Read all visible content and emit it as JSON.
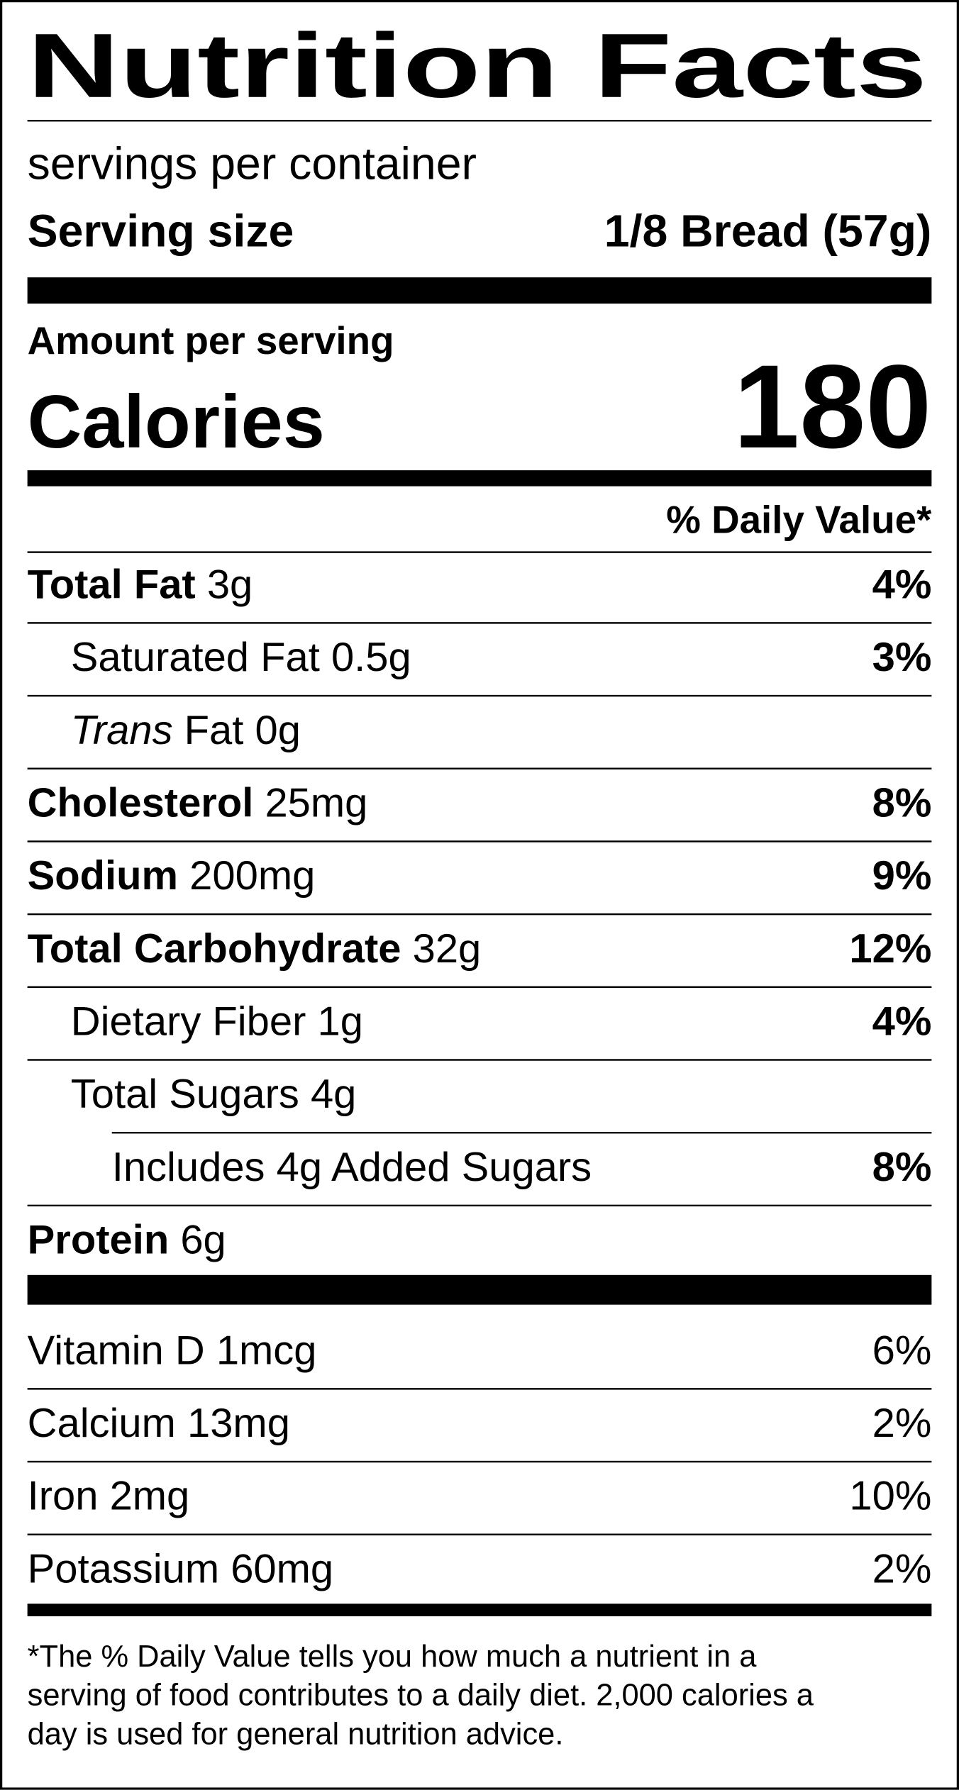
{
  "header": {
    "title": "Nutrition Facts",
    "servings": "servings per container",
    "serving_size_label": "Serving size",
    "serving_size": "1/8 Bread (57g)"
  },
  "calories": {
    "amount_label": "Amount per serving",
    "label": "Calories",
    "value": 180
  },
  "daily_value_header": "% Daily Value*",
  "nutrients": [
    {
      "name": "Total Fat",
      "amount": "3g",
      "dv": "4%",
      "level": 0,
      "bold": true
    },
    {
      "name": "Saturated Fat",
      "amount": "0.5g",
      "dv": "3%",
      "level": 1,
      "bold": false
    },
    {
      "prefix": "Trans",
      "name": "Fat",
      "amount": "0g",
      "level": 1,
      "bold": false
    },
    {
      "name": "Cholesterol",
      "amount": "25mg",
      "dv": "8%",
      "level": 0,
      "bold": true
    },
    {
      "name": "Sodium",
      "amount": "200mg",
      "dv": "9%",
      "level": 0,
      "bold": true
    },
    {
      "name": "Total Carbohydrate",
      "amount": "32g",
      "dv": "12%",
      "level": 0,
      "bold": true
    },
    {
      "name": "Dietary Fiber",
      "amount": "1g",
      "dv": "4%",
      "level": 1,
      "bold": false
    },
    {
      "name": "Total Sugars",
      "amount": "4g",
      "level": 1,
      "bold": false
    },
    {
      "name": "Includes 4g Added Sugars",
      "dv": "8%",
      "level": 2,
      "bold": false
    },
    {
      "name": "Protein",
      "amount": "6g",
      "level": 0,
      "bold": true
    }
  ],
  "vitamins": [
    {
      "name": "Vitamin D",
      "amount": "1mcg",
      "dv": "6%"
    },
    {
      "name": "Calcium",
      "amount": "13mg",
      "dv": "2%"
    },
    {
      "name": "Iron",
      "amount": "2mg",
      "dv": "10%"
    },
    {
      "name": "Potassium",
      "amount": "60mg",
      "dv": "2%"
    }
  ],
  "footnote": [
    "*The % Daily Value tells you how much a nutrient in a",
    "serving of food contributes to a daily diet. 2,000 calories a",
    "day is used for general nutrition advice."
  ]
}
